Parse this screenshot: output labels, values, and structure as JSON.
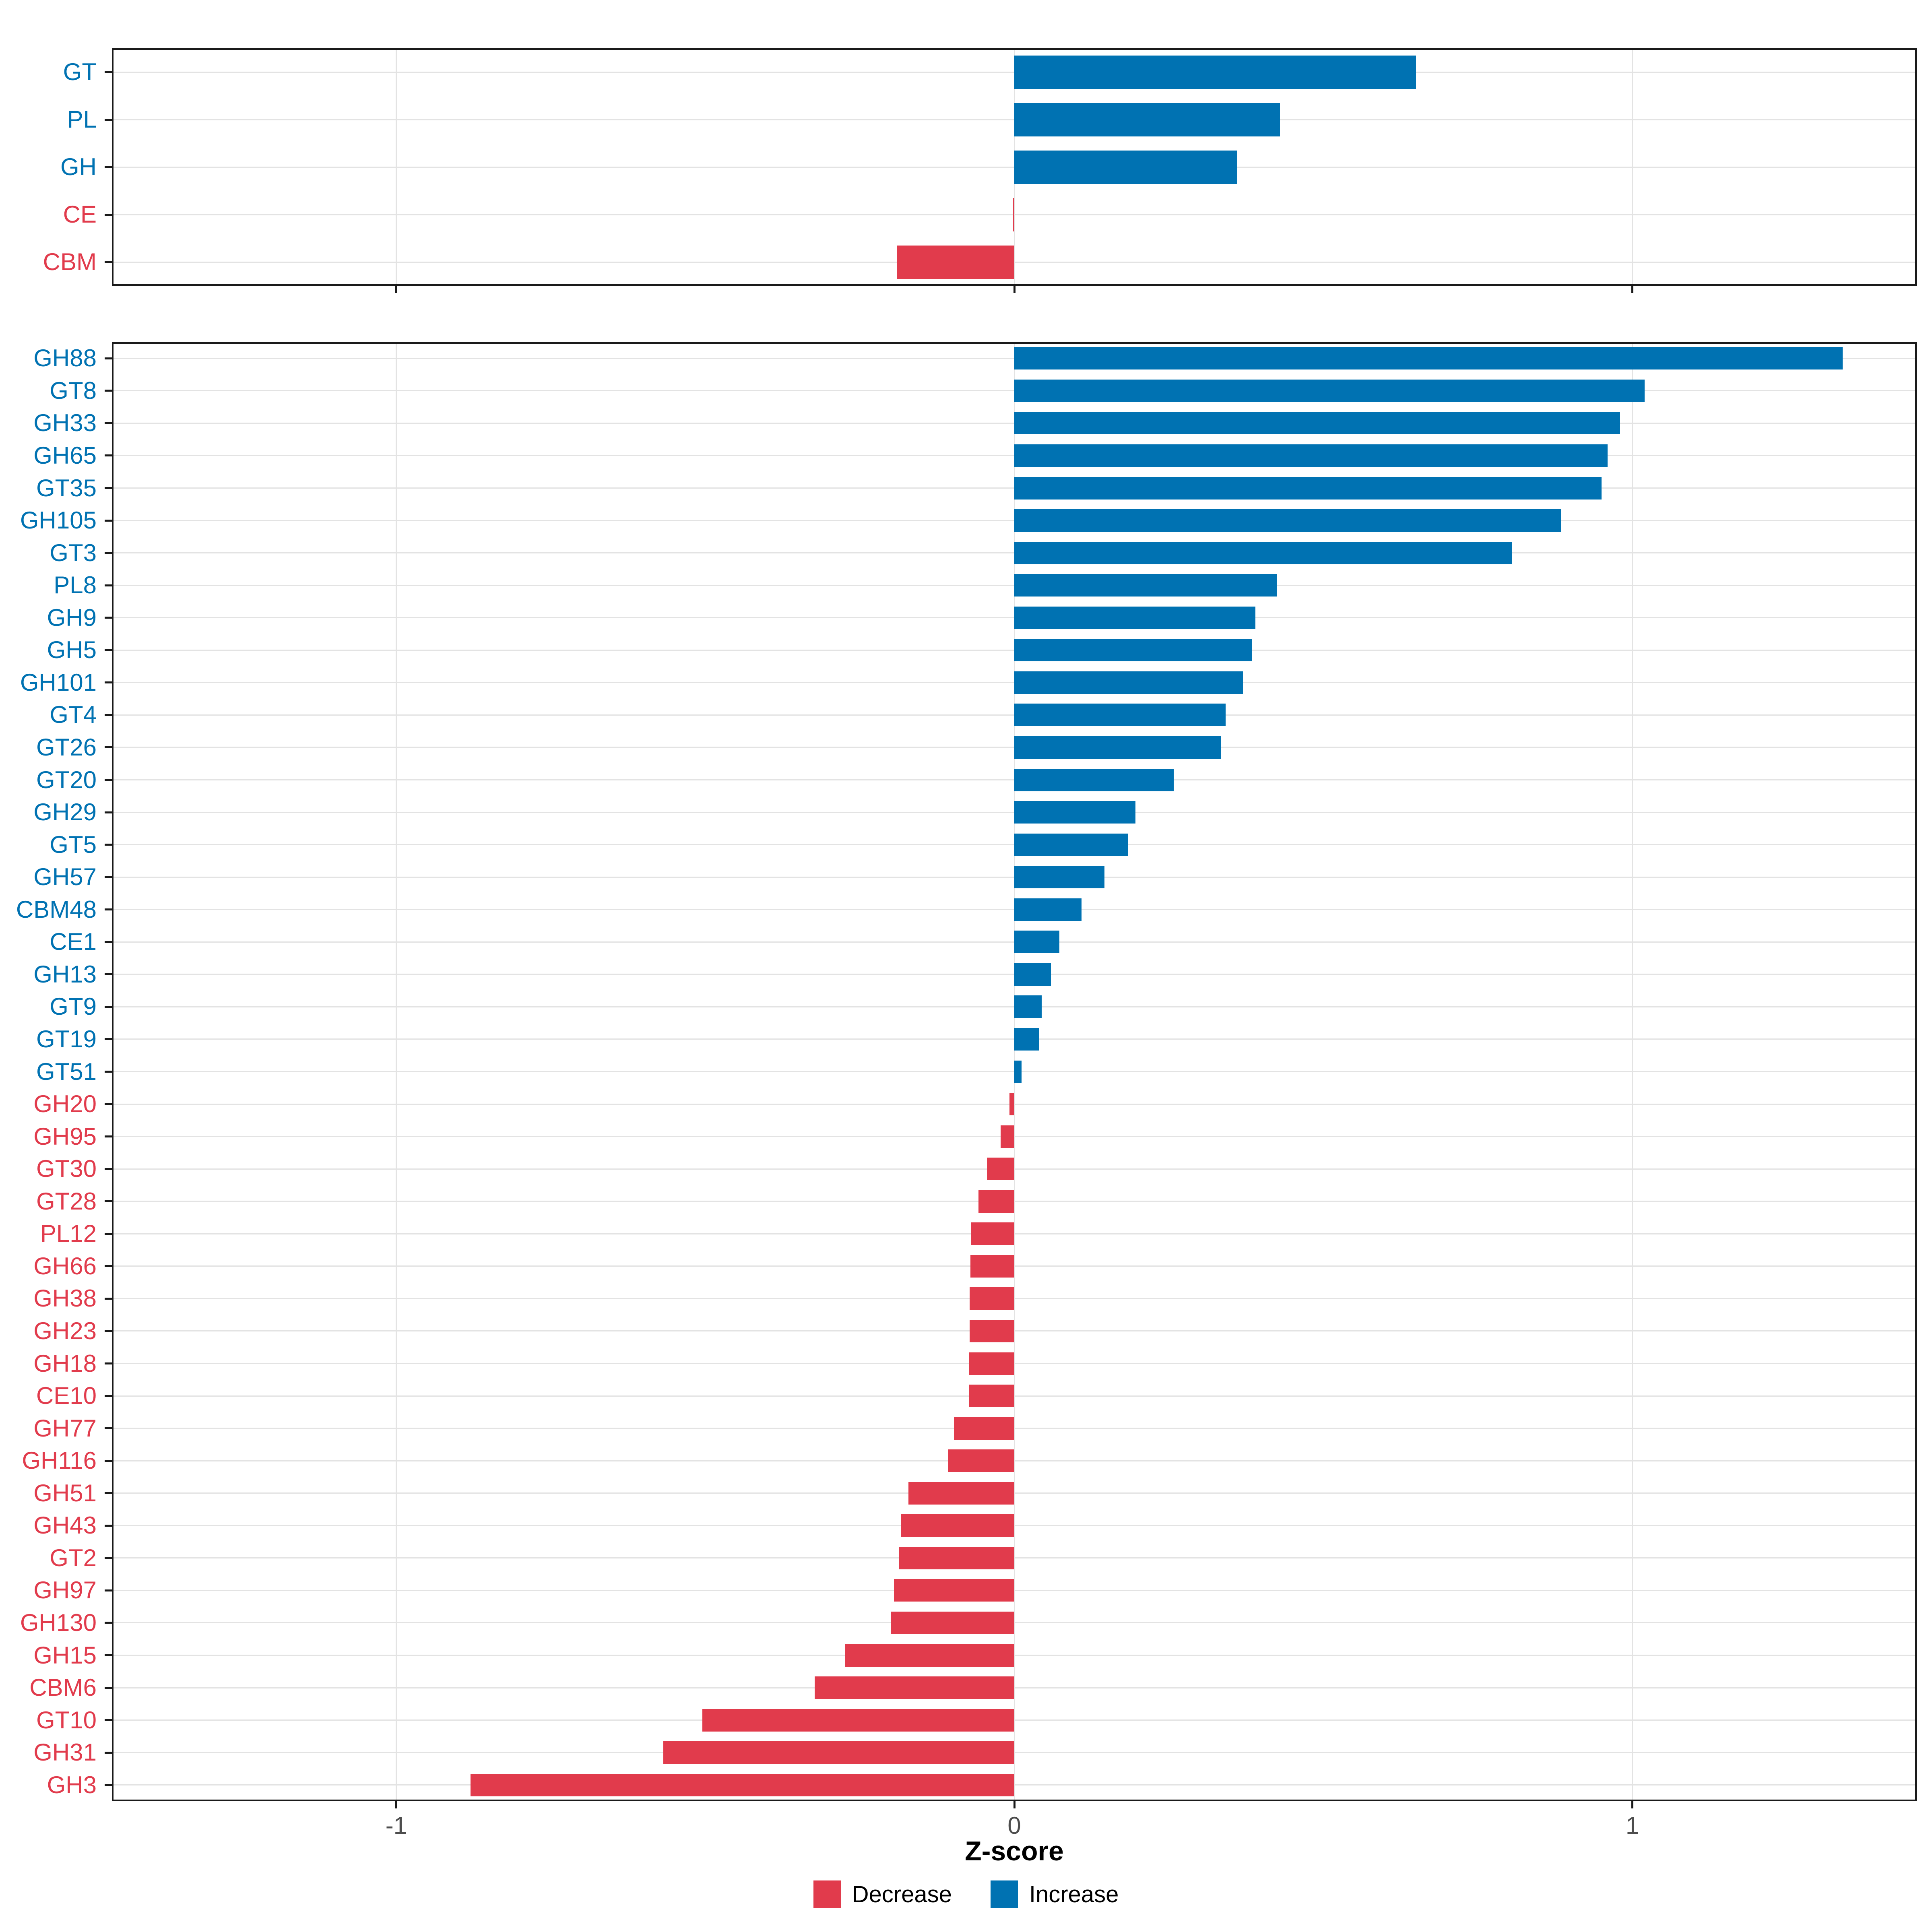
{
  "chart_data": [
    {
      "type": "bar",
      "orientation": "horizontal",
      "panel": "top",
      "title": "",
      "categories": [
        "GT",
        "PL",
        "GH",
        "CE",
        "CBM"
      ],
      "values": [
        0.65,
        0.43,
        0.36,
        -0.002,
        -0.19
      ],
      "xlim": [
        -1.46,
        1.46
      ],
      "x_ticks": [
        -1,
        0,
        1
      ],
      "show_x_tick_labels": false,
      "grid": true,
      "bar_fill_fraction": 0.7
    },
    {
      "type": "bar",
      "orientation": "horizontal",
      "panel": "bottom",
      "title": "",
      "categories": [
        "GH88",
        "GT8",
        "GH33",
        "GH65",
        "GT35",
        "GH105",
        "GT3",
        "PL8",
        "GH9",
        "GH5",
        "GH101",
        "GT4",
        "GT26",
        "GT20",
        "GH29",
        "GT5",
        "GH57",
        "CBM48",
        "CE1",
        "GH13",
        "GT9",
        "GT19",
        "GT51",
        "GH20",
        "GH95",
        "GT30",
        "GT28",
        "PL12",
        "GH66",
        "GH38",
        "GH23",
        "GH18",
        "CE10",
        "GH77",
        "GH116",
        "GH51",
        "GH43",
        "GT2",
        "GH97",
        "GH130",
        "GH15",
        "CBM6",
        "GT10",
        "GH31",
        "GH3"
      ],
      "values": [
        1.34,
        1.02,
        0.98,
        0.96,
        0.95,
        0.885,
        0.805,
        0.425,
        0.39,
        0.385,
        0.37,
        0.342,
        0.335,
        0.258,
        0.196,
        0.184,
        0.146,
        0.109,
        0.073,
        0.059,
        0.044,
        0.04,
        0.012,
        -0.008,
        -0.022,
        -0.044,
        -0.058,
        -0.07,
        -0.071,
        -0.072,
        -0.072,
        -0.073,
        -0.073,
        -0.098,
        -0.107,
        -0.171,
        -0.183,
        -0.186,
        -0.195,
        -0.2,
        -0.274,
        -0.323,
        -0.505,
        -0.568,
        -0.88
      ],
      "xlim": [
        -1.46,
        1.46
      ],
      "x_ticks": [
        -1,
        0,
        1
      ],
      "show_x_tick_labels": true,
      "grid": true,
      "bar_fill_fraction": 0.7
    }
  ],
  "axis": {
    "xlabel": "Z-score",
    "x_tick_labels": [
      "-1",
      "0",
      "1"
    ]
  },
  "legend": {
    "position": "bottom-center",
    "items": [
      {
        "label": "Decrease",
        "color": "#e13b4c"
      },
      {
        "label": "Increase",
        "color": "#0072b2"
      }
    ]
  },
  "colors": {
    "increase": "#0072b2",
    "decrease": "#e13b4c",
    "gridline": "#e3e3e3",
    "panel_border": "#1a1a1a",
    "tick": "#1a1a1a",
    "tick_text": "#4d4d4d",
    "background": "#ffffff"
  }
}
